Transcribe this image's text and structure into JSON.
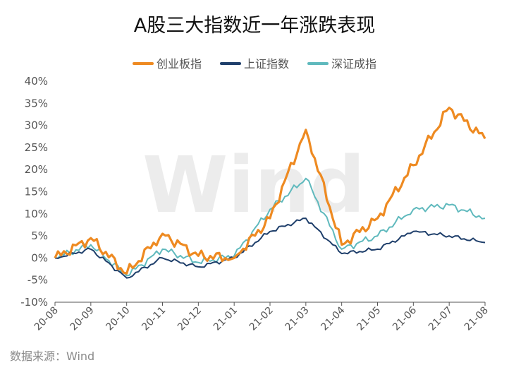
{
  "chart_data": {
    "type": "line",
    "title": "A股三大指数近一年涨跌表现",
    "source": "数据来源：Wind",
    "watermark": "Wind",
    "x": [
      "20-08",
      "20-09",
      "20-10",
      "20-11",
      "20-12",
      "21-01",
      "21-02",
      "21-03",
      "21-04",
      "21-05",
      "21-06",
      "21-07",
      "21-08"
    ],
    "xlabel": "",
    "ylabel": "",
    "ylim": [
      -10,
      40
    ],
    "ytick_labels": [
      "40%",
      "35%",
      "30%",
      "25%",
      "20%",
      "15%",
      "10%",
      "5%",
      "0%",
      "-5%",
      "-10%"
    ],
    "grid": false,
    "legend_position": "top-center",
    "series": [
      {
        "name": "创业板指",
        "color": "#ee8a21",
        "values": [
          0,
          4.5,
          -3.5,
          5.5,
          0.5,
          0,
          9,
          29,
          3,
          9,
          21,
          34,
          27
        ]
      },
      {
        "name": "上证指数",
        "color": "#1f3f6b",
        "values": [
          0,
          2,
          -4.5,
          0,
          -2,
          0,
          6,
          9,
          1,
          2,
          6,
          5,
          3.5
        ]
      },
      {
        "name": "深证成指",
        "color": "#5fb9bd",
        "values": [
          0,
          3,
          -4,
          2,
          -1,
          0.5,
          11,
          18,
          2,
          5,
          11,
          12,
          9
        ]
      }
    ]
  }
}
